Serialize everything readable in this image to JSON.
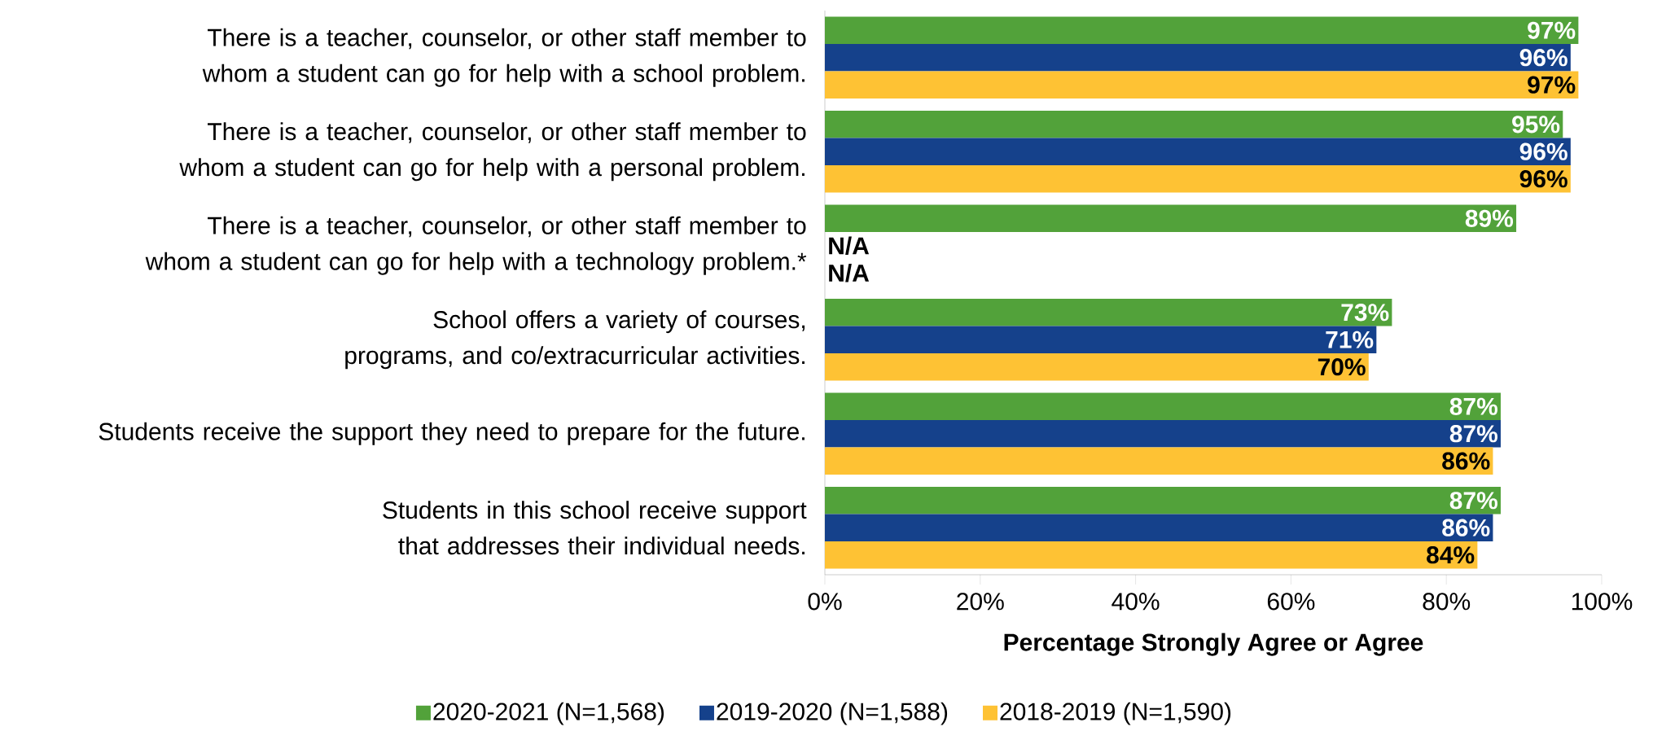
{
  "chart_data": {
    "type": "bar",
    "orientation": "horizontal",
    "categories": [
      "There is a teacher, counselor, or other staff member to whom a student can go for help with a school problem.",
      "There is a teacher, counselor, or other staff member to whom a student can go for help with a personal problem.",
      "There is a teacher, counselor, or other staff member to whom a student can go for help with a technology problem.*",
      "School offers a variety of courses, programs, and co/extracurricular activities.",
      "Students receive the support they need to prepare for the future.",
      "Students in this school receive support that addresses their individual needs."
    ],
    "series": [
      {
        "name": "2020-2021 (N=1,568)",
        "color": "#52a23a",
        "values": [
          97,
          95,
          89,
          73,
          87,
          87
        ],
        "value_labels": [
          "97%",
          "95%",
          "89%",
          "73%",
          "87%",
          "87%"
        ]
      },
      {
        "name": "2019-2020 (N=1,588)",
        "color": "#15418b",
        "values": [
          96,
          96,
          null,
          71,
          87,
          86
        ],
        "value_labels": [
          "96%",
          "96%",
          "N/A",
          "71%",
          "87%",
          "86%"
        ]
      },
      {
        "name": "2018-2019 (N=1,590)",
        "color": "#fec234",
        "values": [
          97,
          96,
          null,
          70,
          86,
          84
        ],
        "value_labels": [
          "97%",
          "96%",
          "N/A",
          "70%",
          "86%",
          "84%"
        ]
      }
    ],
    "xlabel": "Percentage Strongly Agree or Agree",
    "xlim": [
      0,
      100
    ],
    "xticks": [
      {
        "value": 0,
        "label": "0%"
      },
      {
        "value": 20,
        "label": "20%"
      },
      {
        "value": 40,
        "label": "40%"
      },
      {
        "value": 60,
        "label": "60%"
      },
      {
        "value": 80,
        "label": "80%"
      },
      {
        "value": 100,
        "label": "100%"
      }
    ],
    "legend": "bottom",
    "grid": false
  }
}
